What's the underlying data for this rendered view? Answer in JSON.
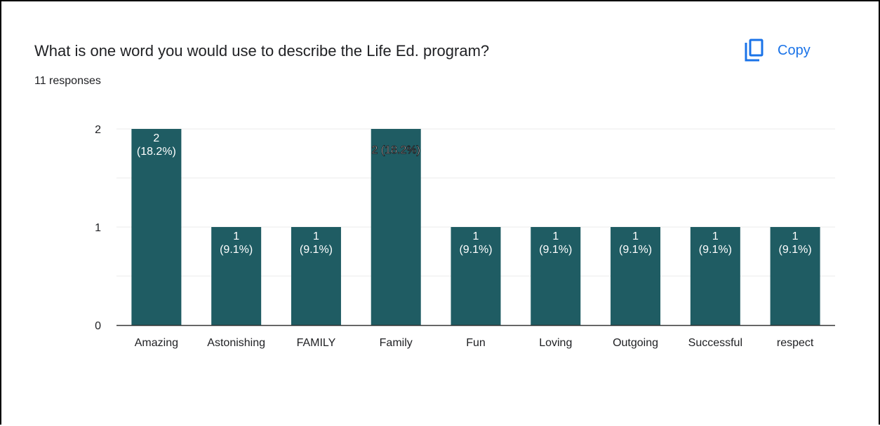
{
  "card": {
    "question": "What is one word you would use to describe the Life Ed. program?",
    "response_count": "11 responses",
    "copy_label": "Copy",
    "copy_icon": "copy-icon",
    "accent_color": "#1a73e8"
  },
  "chart_data": {
    "type": "bar",
    "categories": [
      "Amazing",
      "Astonishing",
      "FAMILY",
      "Family",
      "Fun",
      "Loving",
      "Outgoing",
      "Successful",
      "respect"
    ],
    "values": [
      2,
      1,
      1,
      2,
      1,
      1,
      1,
      1,
      1
    ],
    "data_labels": [
      [
        "2",
        "(18.2%)"
      ],
      [
        "1",
        "(9.1%)"
      ],
      [
        "1",
        "(9.1%)"
      ],
      [
        "2 (18.2%)"
      ],
      [
        "1",
        "(9.1%)"
      ],
      [
        "1",
        "(9.1%)"
      ],
      [
        "1",
        "(9.1%)"
      ],
      [
        "1",
        "(9.1%)"
      ],
      [
        "1",
        "(9.1%)"
      ]
    ],
    "yticks": [
      "0",
      "1",
      "2"
    ],
    "ylim": [
      0,
      2
    ],
    "grid": true,
    "bar_color": "#1f5c63",
    "title": "",
    "xlabel": "",
    "ylabel": ""
  }
}
